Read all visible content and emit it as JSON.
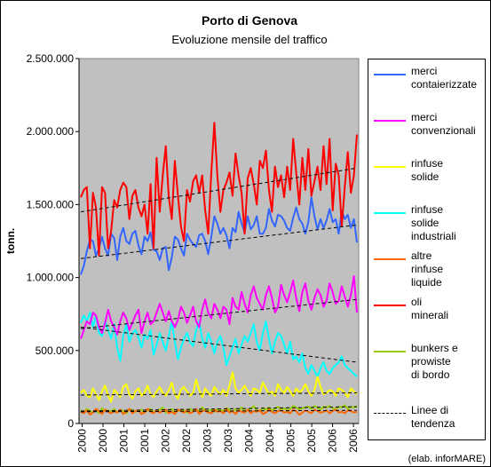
{
  "chart_data": {
    "type": "line",
    "title": "Porto di Genova",
    "subtitle": "Evoluzione mensile del traffico",
    "ylabel": "tonn.",
    "xlabel": "",
    "ylim": [
      0,
      2500000
    ],
    "y_ticks": [
      "0",
      "500.000",
      "1.000.000",
      "1.500.000",
      "2.000.000",
      "2.500.000"
    ],
    "y_tick_values": [
      0,
      500000,
      1000000,
      1500000,
      2000000,
      2500000
    ],
    "x_ticks": [
      "2000",
      "2000",
      "2001",
      "2001",
      "2002",
      "2002",
      "2003",
      "2003",
      "2004",
      "2004",
      "2005",
      "2005",
      "2006",
      "2006"
    ],
    "grid": false,
    "plot_background": "#c0c0c0",
    "legend_position": "right",
    "credit": "(elab. inforMARE)",
    "series": [
      {
        "name": "merci\ncontaierizzate",
        "color": "#3366ff",
        "values": [
          1020000,
          1080000,
          1180000,
          1260000,
          1250000,
          1150000,
          1200000,
          1280000,
          1200000,
          1150000,
          1300000,
          1270000,
          1120000,
          1280000,
          1340000,
          1250000,
          1230000,
          1300000,
          1320000,
          1220000,
          1160000,
          1280000,
          1250000,
          1310000,
          1190000,
          1180000,
          1120000,
          1200000,
          1210000,
          1050000,
          1140000,
          1280000,
          1260000,
          1200000,
          1150000,
          1300000,
          1260000,
          1230000,
          1210000,
          1290000,
          1300000,
          1250000,
          1160000,
          1280000,
          1420000,
          1370000,
          1300000,
          1340000,
          1290000,
          1200000,
          1340000,
          1310000,
          1450000,
          1370000,
          1310000,
          1420000,
          1330000,
          1360000,
          1420000,
          1300000,
          1300000,
          1340000,
          1470000,
          1390000,
          1350000,
          1430000,
          1420000,
          1390000,
          1340000,
          1320000,
          1410000,
          1480000,
          1400000,
          1370000,
          1300000,
          1380000,
          1550000,
          1420000,
          1330000,
          1400000,
          1340000,
          1390000,
          1470000,
          1380000,
          1400000,
          1300000,
          1460000,
          1400000,
          1430000,
          1340000,
          1400000,
          1240000
        ],
        "trend": [
          1130000,
          1360000
        ]
      },
      {
        "name": "merci\nconvenzionali",
        "color": "#ff00ff",
        "values": [
          580000,
          640000,
          700000,
          680000,
          760000,
          740000,
          660000,
          620000,
          690000,
          780000,
          700000,
          660000,
          610000,
          700000,
          760000,
          720000,
          640000,
          690000,
          740000,
          780000,
          620000,
          700000,
          760000,
          680000,
          700000,
          760000,
          820000,
          760000,
          700000,
          770000,
          700000,
          660000,
          710000,
          800000,
          760000,
          690000,
          740000,
          800000,
          700000,
          660000,
          780000,
          850000,
          760000,
          720000,
          820000,
          780000,
          720000,
          800000,
          780000,
          680000,
          860000,
          800000,
          780000,
          900000,
          820000,
          760000,
          880000,
          940000,
          860000,
          820000,
          780000,
          880000,
          940000,
          860000,
          760000,
          800000,
          950000,
          880000,
          830000,
          900000,
          980000,
          860000,
          770000,
          900000,
          960000,
          840000,
          780000,
          860000,
          920000,
          880000,
          800000,
          840000,
          960000,
          900000,
          820000,
          840000,
          940000,
          870000,
          800000,
          880000,
          1010000,
          760000
        ],
        "trend": [
          650000,
          850000
        ]
      },
      {
        "name": "rinfuse\nsolide",
        "color": "#ffff00",
        "values": [
          210000,
          230000,
          190000,
          180000,
          240000,
          200000,
          160000,
          220000,
          260000,
          190000,
          150000,
          230000,
          210000,
          180000,
          250000,
          270000,
          200000,
          170000,
          220000,
          240000,
          190000,
          210000,
          260000,
          200000,
          180000,
          220000,
          250000,
          210000,
          190000,
          230000,
          280000,
          200000,
          170000,
          230000,
          250000,
          220000,
          190000,
          210000,
          300000,
          230000,
          180000,
          240000,
          210000,
          190000,
          250000,
          220000,
          200000,
          230000,
          190000,
          260000,
          350000,
          240000,
          210000,
          230000,
          260000,
          220000,
          190000,
          240000,
          230000,
          210000,
          280000,
          240000,
          200000,
          220000,
          190000,
          270000,
          230000,
          210000,
          250000,
          220000,
          190000,
          240000,
          210000,
          230000,
          270000,
          220000,
          190000,
          230000,
          320000,
          250000,
          200000,
          210000,
          230000,
          220000,
          190000,
          240000,
          230000,
          210000,
          180000,
          240000,
          220000,
          200000
        ],
        "trend": [
          195000,
          210000
        ]
      },
      {
        "name": "rinfuse\nsolide\nindustriali",
        "color": "#00ffff",
        "values": [
          690000,
          740000,
          700000,
          760000,
          660000,
          740000,
          620000,
          600000,
          700000,
          640000,
          580000,
          680000,
          520000,
          430000,
          600000,
          680000,
          560000,
          620000,
          640000,
          590000,
          520000,
          610000,
          580000,
          640000,
          470000,
          540000,
          620000,
          560000,
          500000,
          600000,
          700000,
          560000,
          440000,
          520000,
          580000,
          620000,
          560000,
          530000,
          640000,
          700000,
          580000,
          520000,
          620000,
          560000,
          480000,
          560000,
          600000,
          520000,
          400000,
          460000,
          520000,
          580000,
          480000,
          540000,
          600000,
          560000,
          620000,
          680000,
          560000,
          500000,
          620000,
          700000,
          580000,
          480000,
          560000,
          620000,
          600000,
          540000,
          480000,
          560000,
          440000,
          460000,
          420000,
          480000,
          380000,
          340000,
          400000,
          360000,
          320000,
          380000,
          420000,
          360000,
          340000,
          380000,
          400000,
          420000,
          460000,
          400000,
          380000,
          360000,
          340000,
          320000
        ],
        "trend": [
          660000,
          420000
        ]
      },
      {
        "name": "altre\nrinfuse\nliquide",
        "color": "#ff6600",
        "values": [
          80000,
          70000,
          90000,
          60000,
          75000,
          100000,
          85000,
          65000,
          95000,
          80000,
          70000,
          85000,
          75000,
          95000,
          65000,
          80000,
          100000,
          70000,
          85000,
          90000,
          65000,
          75000,
          100000,
          80000,
          70000,
          90000,
          75000,
          85000,
          95000,
          70000,
          80000,
          65000,
          95000,
          85000,
          75000,
          90000,
          70000,
          80000,
          100000,
          65000,
          85000,
          90000,
          75000,
          70000,
          95000,
          80000,
          85000,
          70000,
          100000,
          75000,
          85000,
          65000,
          90000,
          80000,
          75000,
          95000,
          70000,
          85000,
          80000,
          90000,
          65000,
          75000,
          95000,
          80000,
          70000,
          85000,
          90000,
          75000,
          80000,
          70000,
          95000,
          85000,
          60000,
          75000,
          90000,
          80000,
          70000,
          95000,
          85000,
          75000,
          80000,
          90000,
          70000,
          85000,
          95000,
          75000,
          80000,
          70000,
          90000,
          85000,
          75000,
          80000
        ],
        "trend": [
          80000,
          90000
        ]
      },
      {
        "name": "oli\nminerali",
        "color": "#ff0000",
        "values": [
          1550000,
          1600000,
          1620000,
          1200000,
          1580000,
          1480000,
          1150000,
          1620000,
          1580000,
          1200000,
          1320000,
          1530000,
          1480000,
          1600000,
          1650000,
          1620000,
          1400000,
          1560000,
          1600000,
          1480000,
          1420000,
          1500000,
          1300000,
          1640000,
          1200000,
          1820000,
          1450000,
          1700000,
          1900000,
          1550000,
          1400000,
          1800000,
          1560000,
          1350000,
          1250000,
          1600000,
          1520000,
          1660000,
          1700000,
          1580000,
          1700000,
          1460000,
          1300000,
          1720000,
          2060000,
          1700000,
          1450000,
          1600000,
          1650000,
          1720000,
          1560000,
          1850000,
          1700000,
          1580000,
          1300000,
          1680000,
          1750000,
          1640000,
          1500000,
          1800000,
          1750000,
          1870000,
          1600000,
          1450000,
          1760000,
          1620000,
          1700000,
          1550000,
          1760000,
          1600000,
          1950000,
          1720000,
          1500000,
          1820000,
          1600000,
          1880000,
          1560000,
          1660000,
          1760000,
          1600000,
          1900000,
          1640000,
          1950000,
          1460000,
          1780000,
          1700000,
          1350000,
          1620000,
          1860000,
          1580000,
          1700000,
          1980000
        ],
        "trend": [
          1450000,
          1750000
        ]
      },
      {
        "name": "bunkers e\nprowiste\ndi bordo",
        "color": "#99cc00",
        "values": [
          90000,
          80000,
          100000,
          85000,
          75000,
          95000,
          70000,
          105000,
          85000,
          90000,
          80000,
          100000,
          75000,
          95000,
          85000,
          70000,
          100000,
          90000,
          80000,
          85000,
          95000,
          75000,
          90000,
          100000,
          80000,
          85000,
          95000,
          110000,
          75000,
          90000,
          100000,
          80000,
          85000,
          95000,
          90000,
          75000,
          100000,
          85000,
          95000,
          80000,
          110000,
          90000,
          85000,
          95000,
          80000,
          100000,
          90000,
          85000,
          105000,
          95000,
          80000,
          100000,
          90000,
          110000,
          85000,
          95000,
          100000,
          120000,
          90000,
          85000,
          105000,
          95000,
          110000,
          90000,
          100000,
          115000,
          95000,
          105000,
          90000,
          100000,
          120000,
          110000,
          95000,
          105000,
          110000,
          115000,
          100000,
          120000,
          110000,
          95000,
          115000,
          110000,
          120000,
          105000,
          95000,
          115000,
          110000,
          125000,
          100000,
          115000,
          110000,
          120000
        ],
        "trend": [
          85000,
          115000
        ]
      }
    ],
    "trend_legend": {
      "name": "Linee di\ntendenza",
      "color": "#000000"
    }
  }
}
